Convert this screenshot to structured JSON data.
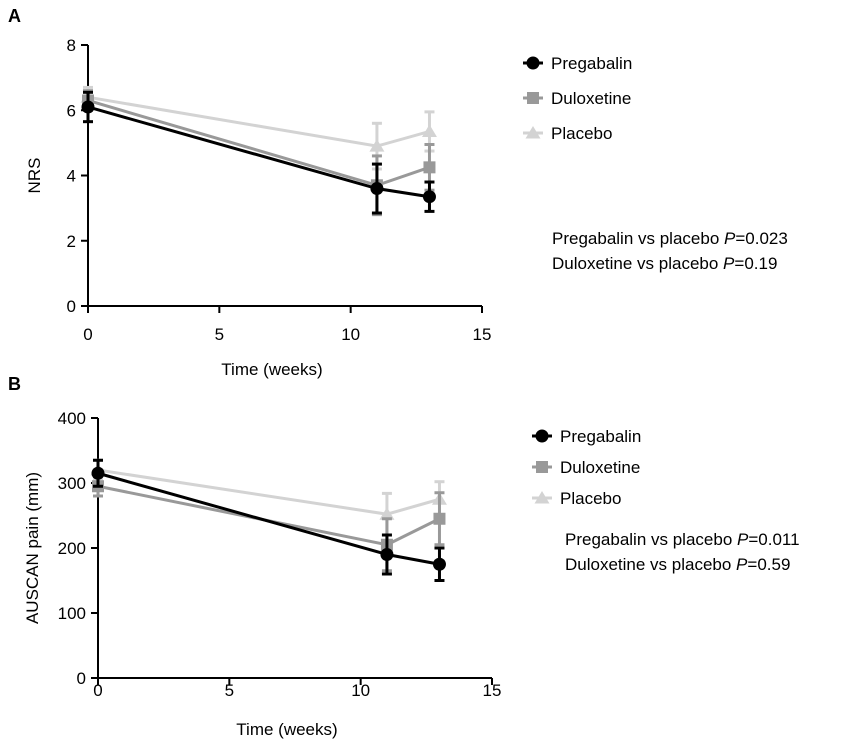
{
  "chart_data": [
    {
      "panel_label": "A",
      "type": "line",
      "xlabel": "Time (weeks)",
      "ylabel": "NRS",
      "xlim": [
        0,
        15
      ],
      "ylim": [
        0,
        8
      ],
      "xticks": [
        "0",
        "5",
        "10",
        "15"
      ],
      "yticks": [
        "0",
        "2",
        "4",
        "6",
        "8"
      ],
      "legend_position": "right",
      "series": [
        {
          "name": "Pregabalin",
          "marker": "circle",
          "color": "#000000",
          "x": [
            0,
            11,
            13
          ],
          "y": [
            6.1,
            3.6,
            3.35
          ],
          "err": [
            0.45,
            0.75,
            0.45
          ]
        },
        {
          "name": "Duloxetine",
          "marker": "square",
          "color": "#999999",
          "x": [
            0,
            11,
            13
          ],
          "y": [
            6.3,
            3.7,
            4.25
          ],
          "err": [
            0.3,
            0.9,
            0.7
          ]
        },
        {
          "name": "Placebo",
          "marker": "triangle",
          "color": "#d3d3d3",
          "x": [
            0,
            11,
            13
          ],
          "y": [
            6.4,
            4.9,
            5.35
          ],
          "err": [
            0.3,
            0.7,
            0.6
          ]
        }
      ],
      "stats": [
        {
          "prefix": "Pregabalin vs placebo ",
          "p": "P",
          "value": "=0.023"
        },
        {
          "prefix": "Duloxetine vs placebo ",
          "p": "P",
          "value": "=0.19"
        }
      ]
    },
    {
      "panel_label": "B",
      "type": "line",
      "xlabel": "Time (weeks)",
      "ylabel": "AUSCAN pain (mm)",
      "xlim": [
        0,
        15
      ],
      "ylim": [
        0,
        400
      ],
      "xticks": [
        "0",
        "5",
        "10",
        "15"
      ],
      "yticks": [
        "0",
        "100",
        "200",
        "300",
        "400"
      ],
      "legend_position": "right",
      "series": [
        {
          "name": "Pregabalin",
          "marker": "circle",
          "color": "#000000",
          "x": [
            0,
            11,
            13
          ],
          "y": [
            315,
            190,
            175
          ],
          "err": [
            20,
            30,
            25
          ]
        },
        {
          "name": "Duloxetine",
          "marker": "square",
          "color": "#999999",
          "x": [
            0,
            11,
            13
          ],
          "y": [
            295,
            205,
            245
          ],
          "err": [
            15,
            40,
            40
          ]
        },
        {
          "name": "Placebo",
          "marker": "triangle",
          "color": "#d3d3d3",
          "x": [
            0,
            11,
            13
          ],
          "y": [
            320,
            252,
            275
          ],
          "err": [
            15,
            32,
            27
          ]
        }
      ],
      "stats": [
        {
          "prefix": "Pregabalin vs placebo ",
          "p": "P",
          "value": "=0.011"
        },
        {
          "prefix": "Duloxetine vs placebo ",
          "p": "P",
          "value": "=0.59"
        }
      ]
    }
  ]
}
